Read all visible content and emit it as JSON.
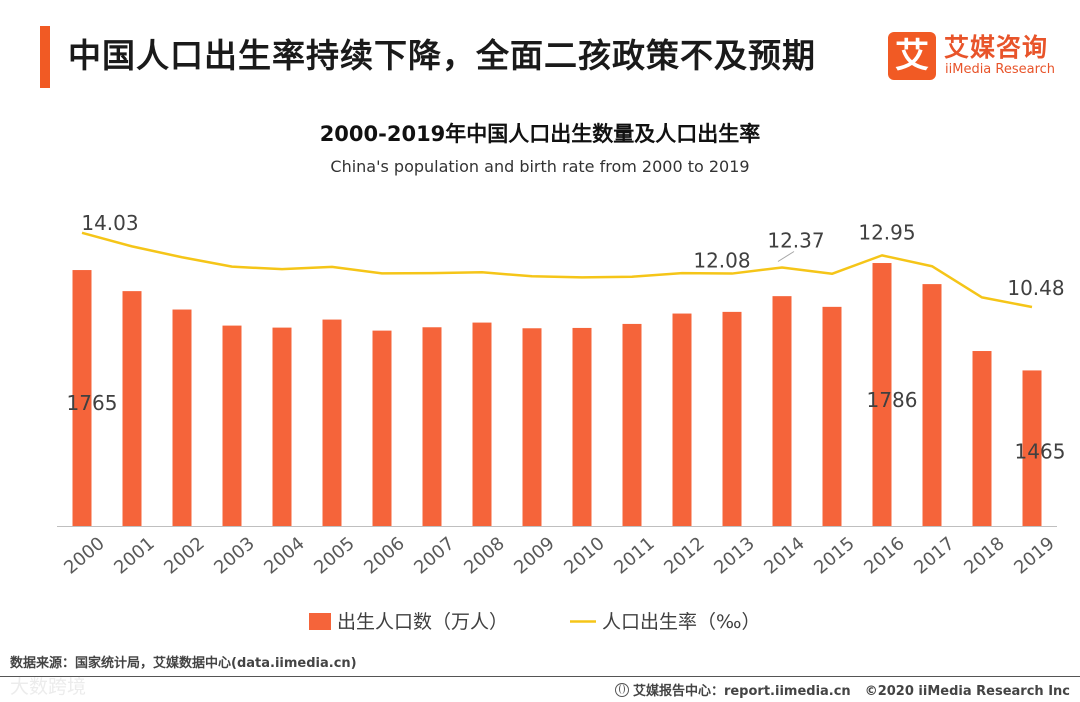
{
  "header": {
    "title": "中国人口出生率持续下降，全面二孩政策不及预期",
    "logo": {
      "mark": "艾",
      "name_cn": "艾媒咨询",
      "name_en": "iiMedia Research"
    }
  },
  "colors": {
    "accent": "#f15a24",
    "bar": "#f5643a",
    "line": "#f5c518",
    "axis": "#bfbfbf"
  },
  "chart_data": {
    "type": "bar",
    "title": "2000-2019年中国人口出生数量及人口出生率",
    "subtitle": "China's population and birth rate from 2000 to 2019",
    "categories": [
      "2000",
      "2001",
      "2002",
      "2003",
      "2004",
      "2005",
      "2006",
      "2007",
      "2008",
      "2009",
      "2010",
      "2011",
      "2012",
      "2013",
      "2014",
      "2015",
      "2016",
      "2017",
      "2018",
      "2019"
    ],
    "series": [
      {
        "name": "出生人口数（万人）",
        "kind": "bar",
        "values": [
          1765,
          1702,
          1647,
          1599,
          1593,
          1617,
          1584,
          1594,
          1608,
          1591,
          1592,
          1604,
          1635,
          1640,
          1687,
          1655,
          1786,
          1723,
          1523,
          1465
        ]
      },
      {
        "name": "人口出生率（‰）",
        "kind": "line",
        "values": [
          14.03,
          13.38,
          12.86,
          12.41,
          12.29,
          12.4,
          12.09,
          12.1,
          12.14,
          11.95,
          11.9,
          11.93,
          12.1,
          12.08,
          12.37,
          12.07,
          12.95,
          12.43,
          10.94,
          10.48
        ]
      }
    ],
    "bar_labels": [
      {
        "index": 0,
        "text": "1765"
      },
      {
        "index": 16,
        "text": "1786"
      },
      {
        "index": 19,
        "text": "1465"
      }
    ],
    "line_labels": [
      {
        "index": 0,
        "text": "14.03"
      },
      {
        "index": 13,
        "text": "12.08"
      },
      {
        "index": 14,
        "text": "12.37"
      },
      {
        "index": 16,
        "text": "12.95"
      },
      {
        "index": 19,
        "text": "10.48"
      }
    ],
    "y_bar_range": [
      1000,
      1810
    ],
    "y_line_range": [
      0,
      15.6
    ],
    "legend_position": "bottom"
  },
  "footer": {
    "source": "数据来源：国家统计局，艾媒数据中心(data.iimedia.cn)",
    "watermark": "大数跨境",
    "report_site": "艾媒报告中心：report.iimedia.cn",
    "copyright": "©2020  iiMedia Research  Inc"
  }
}
